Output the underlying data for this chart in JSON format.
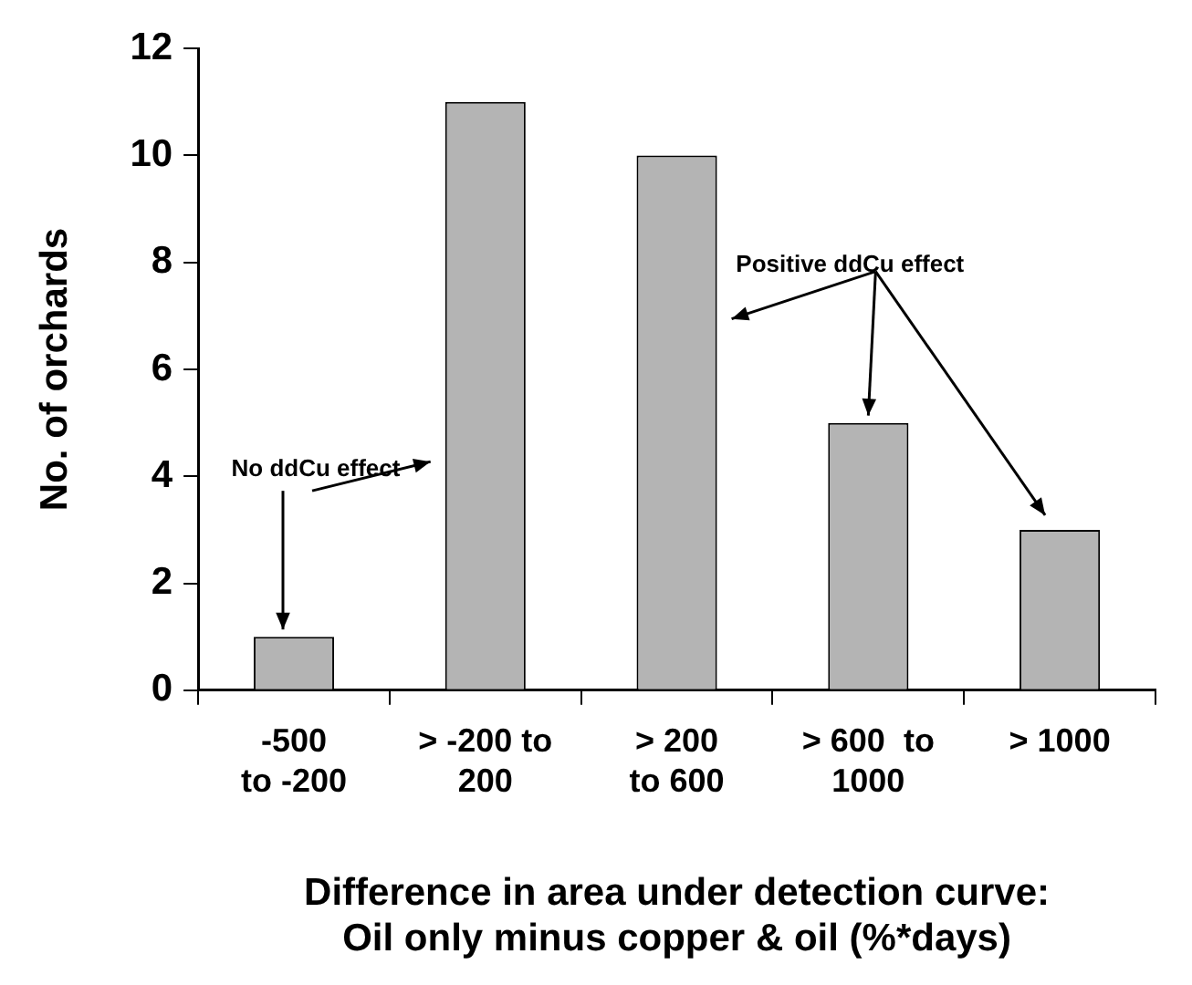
{
  "chart_data": {
    "type": "bar",
    "categories": [
      "-500\nto -200",
      "> -200 to\n200",
      "> 200\nto 600",
      "> 600  to\n1000",
      "> 1000"
    ],
    "values": [
      1,
      11,
      10,
      5,
      3
    ],
    "color": "#b4b4b4",
    "ylim": [
      0,
      12
    ],
    "yticks": [
      0,
      2,
      4,
      6,
      8,
      10,
      12
    ],
    "grid": false,
    "legend": false,
    "xlabel": "Difference in area under detection curve:\nOil only minus copper & oil (%*days)",
    "ylabel": "No. of orchards",
    "annotations": [
      {
        "text": "No ddCu effect",
        "x": "-500\nto -200",
        "y": 1
      },
      {
        "text": "Positive ddCu effect",
        "x": "> 600  to\n1000",
        "y": 5
      }
    ]
  }
}
